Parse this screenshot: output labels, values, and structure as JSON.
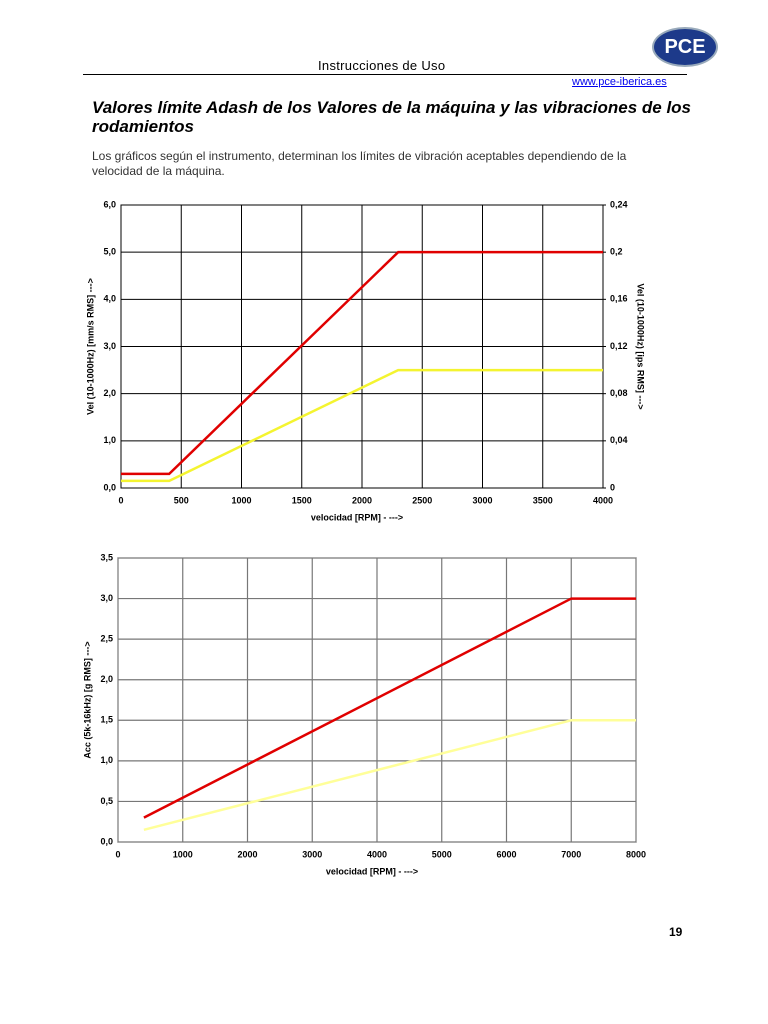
{
  "header": {
    "title": "Instrucciones de Uso",
    "url": "www.pce-iberica.es",
    "logo": "PCE"
  },
  "heading": "Valores límite Adash  de los Valores  de la máquina y  las vibraciones de los rodamientos",
  "intro": "Los gráficos según el instrumento, determinan los límites de vibración aceptables dependiendo de la velocidad de la máquina.",
  "chart_data": [
    {
      "type": "line",
      "x": [
        0,
        400,
        2300,
        4000
      ],
      "series": [
        {
          "color": "#e00000",
          "values": [
            0.3,
            0.3,
            5.0,
            5.0
          ]
        },
        {
          "color": "#f4f430",
          "values": [
            0.15,
            0.15,
            2.5,
            2.5
          ]
        }
      ],
      "xlim": [
        0,
        4000
      ],
      "xticks": [
        0,
        500,
        1000,
        1500,
        2000,
        2500,
        3000,
        3500,
        4000
      ],
      "ylim": [
        0,
        6
      ],
      "yticks": [
        {
          "value": 0,
          "label": "0,0"
        },
        {
          "value": 1,
          "label": "1,0"
        },
        {
          "value": 2,
          "label": "2,0"
        },
        {
          "value": 3,
          "label": "3,0"
        },
        {
          "value": 4,
          "label": "4,0"
        },
        {
          "value": 5,
          "label": "5,0"
        },
        {
          "value": 6,
          "label": "6,0"
        }
      ],
      "y2lim": [
        0,
        0.24
      ],
      "y2ticks": [
        0,
        {
          "value": 0.04,
          "label": "0,04"
        },
        {
          "value": 0.08,
          "label": "0,08"
        },
        {
          "value": 0.12,
          "label": "0,12"
        },
        {
          "value": 0.16,
          "label": "0,16"
        },
        {
          "value": 0.2,
          "label": "0,2"
        },
        {
          "value": 0.24,
          "label": "0,24"
        }
      ],
      "xlabel": "velocidad   [RPM] - --->",
      "ylabel": "Vel (10-1000Hz)   [mm/s RMS] --->",
      "y2label": "Vel (10-1000Hz)   [ips RMS] --->",
      "grid": true
    },
    {
      "type": "line",
      "x": [
        400,
        7000,
        8000
      ],
      "series": [
        {
          "color": "#e00000",
          "values": [
            0.3,
            3.0,
            3.0
          ]
        },
        {
          "color": "#ffff99",
          "values": [
            0.15,
            1.5,
            1.5
          ]
        }
      ],
      "xlim": [
        0,
        8000
      ],
      "xticks": [
        0,
        1000,
        2000,
        3000,
        4000,
        5000,
        6000,
        7000,
        8000
      ],
      "ylim": [
        0,
        3.5
      ],
      "yticks": [
        {
          "value": 0,
          "label": "0,0"
        },
        {
          "value": 0.5,
          "label": "0,5"
        },
        {
          "value": 1,
          "label": "1,0"
        },
        {
          "value": 1.5,
          "label": "1,5"
        },
        {
          "value": 2,
          "label": "2,0"
        },
        {
          "value": 2.5,
          "label": "2,5"
        },
        {
          "value": 3,
          "label": "3,0"
        },
        {
          "value": 3.5,
          "label": "3,5"
        }
      ],
      "xlabel": "velocidad   [RPM] - --->",
      "ylabel": "Acc (5k-16kHz)   [g RMS] --->",
      "grid": true
    }
  ],
  "page_number": "19"
}
